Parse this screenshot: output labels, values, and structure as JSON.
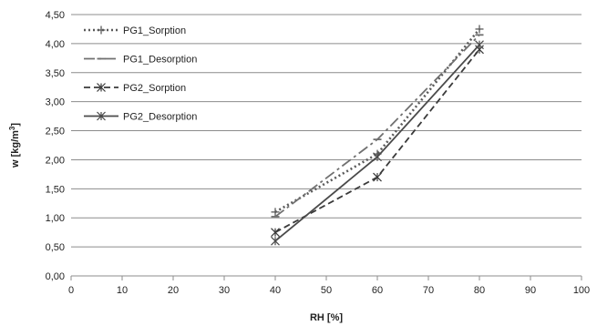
{
  "chart_data": {
    "type": "line",
    "xlabel": "RH [%]",
    "ylabel": "w [kg/m³]",
    "xlim": [
      0,
      100
    ],
    "ylim": [
      0,
      4.5
    ],
    "x_ticks": [
      0,
      10,
      20,
      30,
      40,
      50,
      60,
      70,
      80,
      90,
      100
    ],
    "y_ticks": [
      0.0,
      0.5,
      1.0,
      1.5,
      2.0,
      2.5,
      3.0,
      3.5,
      4.0,
      4.5
    ],
    "y_tick_labels": [
      "0,00",
      "0,50",
      "1,00",
      "1,50",
      "2,00",
      "2,50",
      "3,00",
      "3,50",
      "4,00",
      "4,50"
    ],
    "grid": "horizontal",
    "legend_position": "top-left",
    "series": [
      {
        "name": "PG1_Sorption",
        "x": [
          40,
          60,
          80
        ],
        "values": [
          1.1,
          2.1,
          4.25
        ],
        "color": "#5a5a5a",
        "dash": "dotted",
        "marker": "plus"
      },
      {
        "name": "PG1_Desorption",
        "x": [
          40,
          60,
          80
        ],
        "values": [
          1.02,
          2.35,
          4.15
        ],
        "color": "#707070",
        "dash": "dashdot",
        "marker": "minus"
      },
      {
        "name": "PG2_Sorption",
        "x": [
          40,
          60,
          80
        ],
        "values": [
          0.75,
          1.7,
          3.9
        ],
        "color": "#3a3a3a",
        "dash": "dashed",
        "marker": "star"
      },
      {
        "name": "PG2_Desorption",
        "x": [
          40,
          60,
          80
        ],
        "values": [
          0.6,
          2.05,
          3.98
        ],
        "color": "#4a4a4a",
        "dash": "solid",
        "marker": "star"
      }
    ]
  }
}
